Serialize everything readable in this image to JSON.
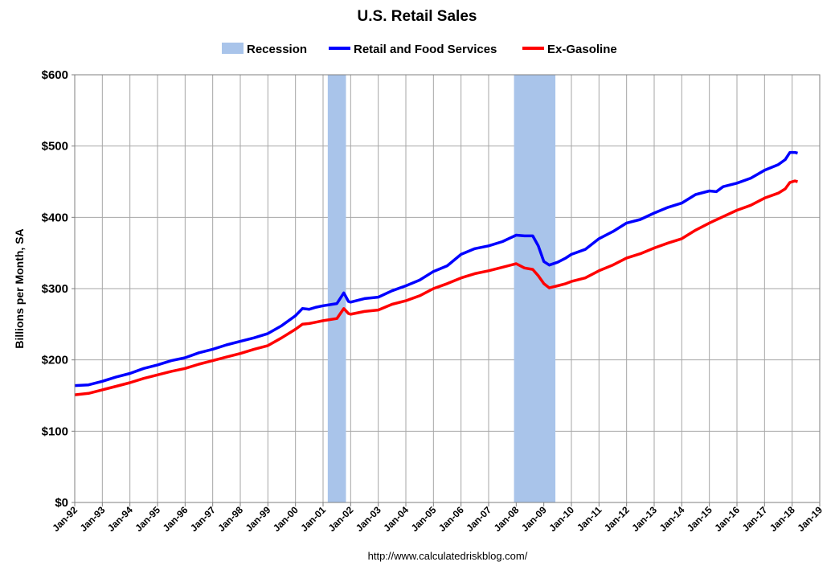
{
  "chart_data": {
    "type": "line",
    "title": "U.S. Retail Sales",
    "ylabel": "Billions per Month, SA",
    "xlabel": "",
    "source": "http://www.calculatedriskblog.com/",
    "ylim": [
      0,
      600
    ],
    "xlim": [
      1992.0,
      2019.0
    ],
    "y_ticks": [
      "$0",
      "$100",
      "$200",
      "$300",
      "$400",
      "$500",
      "$600"
    ],
    "y_tick_values": [
      0,
      100,
      200,
      300,
      400,
      500,
      600
    ],
    "x_ticks": [
      "Jan-92",
      "Jan-93",
      "Jan-94",
      "Jan-95",
      "Jan-96",
      "Jan-97",
      "Jan-98",
      "Jan-99",
      "Jan-00",
      "Jan-01",
      "Jan-02",
      "Jan-03",
      "Jan-04",
      "Jan-05",
      "Jan-06",
      "Jan-07",
      "Jan-08",
      "Jan-09",
      "Jan-10",
      "Jan-11",
      "Jan-12",
      "Jan-13",
      "Jan-14",
      "Jan-15",
      "Jan-16",
      "Jan-17",
      "Jan-18",
      "Jan-19"
    ],
    "x_tick_values": [
      1992,
      1993,
      1994,
      1995,
      1996,
      1997,
      1998,
      1999,
      2000,
      2001,
      2002,
      2003,
      2004,
      2005,
      2006,
      2007,
      2008,
      2009,
      2010,
      2011,
      2012,
      2013,
      2014,
      2015,
      2016,
      2017,
      2018,
      2019
    ],
    "grid": true,
    "legend_position": "top",
    "legend": [
      {
        "label": "Recession",
        "kind": "band",
        "color": "#a9c4ea"
      },
      {
        "label": "Retail and Food Services",
        "kind": "line",
        "color": "#0000ff"
      },
      {
        "label": "Ex-Gasoline",
        "kind": "line",
        "color": "#ff0000"
      }
    ],
    "recessions": [
      {
        "start": 2001.17,
        "end": 2001.83
      },
      {
        "start": 2007.92,
        "end": 2009.42
      }
    ],
    "series": [
      {
        "name": "Retail and Food Services",
        "color": "#0000ff",
        "points": [
          [
            1992.0,
            164
          ],
          [
            1992.5,
            165
          ],
          [
            1993.0,
            170
          ],
          [
            1993.5,
            176
          ],
          [
            1994.0,
            181
          ],
          [
            1994.5,
            188
          ],
          [
            1995.0,
            193
          ],
          [
            1995.5,
            199
          ],
          [
            1996.0,
            203
          ],
          [
            1996.5,
            210
          ],
          [
            1997.0,
            215
          ],
          [
            1997.5,
            221
          ],
          [
            1998.0,
            226
          ],
          [
            1998.5,
            231
          ],
          [
            1999.0,
            237
          ],
          [
            1999.5,
            248
          ],
          [
            2000.0,
            262
          ],
          [
            2000.25,
            272
          ],
          [
            2000.5,
            271
          ],
          [
            2000.75,
            274
          ],
          [
            2001.0,
            276
          ],
          [
            2001.5,
            279
          ],
          [
            2001.75,
            294
          ],
          [
            2001.92,
            282
          ],
          [
            2002.0,
            281
          ],
          [
            2002.5,
            286
          ],
          [
            2003.0,
            288
          ],
          [
            2003.5,
            297
          ],
          [
            2004.0,
            304
          ],
          [
            2004.5,
            312
          ],
          [
            2005.0,
            324
          ],
          [
            2005.5,
            332
          ],
          [
            2006.0,
            348
          ],
          [
            2006.5,
            356
          ],
          [
            2007.0,
            360
          ],
          [
            2007.5,
            366
          ],
          [
            2008.0,
            375
          ],
          [
            2008.3,
            374
          ],
          [
            2008.6,
            374
          ],
          [
            2008.8,
            360
          ],
          [
            2009.0,
            338
          ],
          [
            2009.2,
            333
          ],
          [
            2009.5,
            337
          ],
          [
            2009.8,
            343
          ],
          [
            2010.0,
            348
          ],
          [
            2010.5,
            355
          ],
          [
            2011.0,
            370
          ],
          [
            2011.5,
            380
          ],
          [
            2012.0,
            392
          ],
          [
            2012.5,
            397
          ],
          [
            2013.0,
            406
          ],
          [
            2013.5,
            414
          ],
          [
            2014.0,
            420
          ],
          [
            2014.5,
            432
          ],
          [
            2015.0,
            437
          ],
          [
            2015.25,
            436
          ],
          [
            2015.5,
            443
          ],
          [
            2016.0,
            448
          ],
          [
            2016.5,
            455
          ],
          [
            2017.0,
            466
          ],
          [
            2017.5,
            474
          ],
          [
            2017.75,
            481
          ],
          [
            2017.92,
            491
          ],
          [
            2018.1,
            491
          ],
          [
            2018.2,
            490
          ]
        ]
      },
      {
        "name": "Ex-Gasoline",
        "color": "#ff0000",
        "points": [
          [
            1992.0,
            151
          ],
          [
            1992.5,
            153
          ],
          [
            1993.0,
            158
          ],
          [
            1993.5,
            163
          ],
          [
            1994.0,
            168
          ],
          [
            1994.5,
            174
          ],
          [
            1995.0,
            179
          ],
          [
            1995.5,
            184
          ],
          [
            1996.0,
            188
          ],
          [
            1996.5,
            194
          ],
          [
            1997.0,
            199
          ],
          [
            1997.5,
            204
          ],
          [
            1998.0,
            209
          ],
          [
            1998.5,
            215
          ],
          [
            1999.0,
            220
          ],
          [
            1999.5,
            231
          ],
          [
            2000.0,
            243
          ],
          [
            2000.25,
            250
          ],
          [
            2000.5,
            251
          ],
          [
            2000.75,
            253
          ],
          [
            2001.0,
            255
          ],
          [
            2001.5,
            258
          ],
          [
            2001.75,
            272
          ],
          [
            2001.92,
            265
          ],
          [
            2002.0,
            264
          ],
          [
            2002.5,
            268
          ],
          [
            2003.0,
            270
          ],
          [
            2003.5,
            278
          ],
          [
            2004.0,
            283
          ],
          [
            2004.5,
            290
          ],
          [
            2005.0,
            300
          ],
          [
            2005.5,
            307
          ],
          [
            2006.0,
            315
          ],
          [
            2006.5,
            321
          ],
          [
            2007.0,
            325
          ],
          [
            2007.5,
            330
          ],
          [
            2008.0,
            335
          ],
          [
            2008.3,
            329
          ],
          [
            2008.6,
            327
          ],
          [
            2008.8,
            318
          ],
          [
            2009.0,
            307
          ],
          [
            2009.2,
            301
          ],
          [
            2009.5,
            304
          ],
          [
            2009.8,
            307
          ],
          [
            2010.0,
            310
          ],
          [
            2010.5,
            315
          ],
          [
            2011.0,
            325
          ],
          [
            2011.5,
            333
          ],
          [
            2012.0,
            343
          ],
          [
            2012.5,
            349
          ],
          [
            2013.0,
            357
          ],
          [
            2013.5,
            364
          ],
          [
            2014.0,
            370
          ],
          [
            2014.5,
            382
          ],
          [
            2015.0,
            392
          ],
          [
            2015.5,
            401
          ],
          [
            2016.0,
            410
          ],
          [
            2016.5,
            417
          ],
          [
            2017.0,
            427
          ],
          [
            2017.5,
            434
          ],
          [
            2017.75,
            440
          ],
          [
            2017.92,
            449
          ],
          [
            2018.1,
            451
          ],
          [
            2018.2,
            450
          ]
        ]
      }
    ]
  }
}
